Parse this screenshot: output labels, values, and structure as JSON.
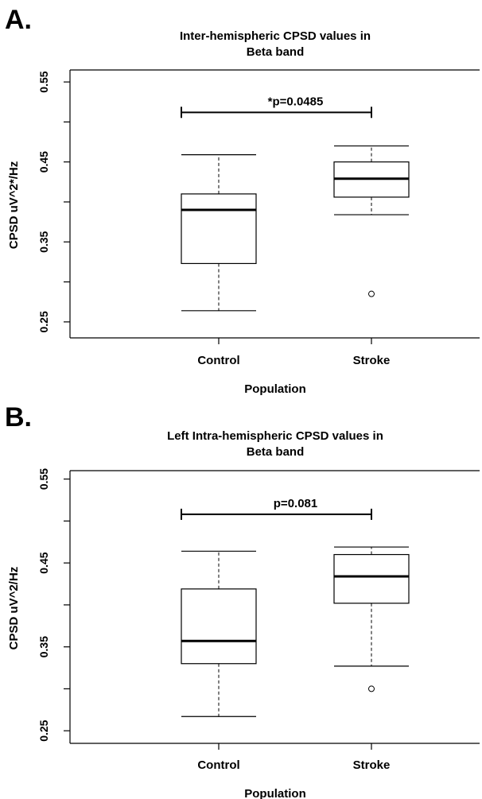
{
  "chart_data": [
    {
      "type": "box",
      "panel": "A.",
      "title_lines": [
        "Inter-hemispheric CPSD values in",
        "Beta band"
      ],
      "xlabel": "Population",
      "ylabel": "CPSD uV^2*/Hz",
      "ylim": [
        0.23,
        0.565
      ],
      "yticks": [
        0.25,
        0.3,
        0.35,
        0.4,
        0.45,
        0.5,
        0.55
      ],
      "ytick_labels": [
        "0.25",
        "",
        "0.35",
        "",
        "0.45",
        "",
        "0.55"
      ],
      "categories": [
        "Control",
        "Stroke"
      ],
      "boxes": [
        {
          "whisker_low": 0.264,
          "q1": 0.323,
          "median": 0.39,
          "q3": 0.41,
          "whisker_high": 0.459,
          "outliers": []
        },
        {
          "whisker_low": 0.384,
          "q1": 0.406,
          "median": 0.429,
          "q3": 0.45,
          "whisker_high": 0.47,
          "outliers": [
            0.285
          ]
        }
      ],
      "significance": {
        "label": "*p=0.0485",
        "y": 0.512
      }
    },
    {
      "type": "box",
      "panel": "B.",
      "title_lines": [
        "Left Intra-hemispheric CPSD values in",
        "Beta band"
      ],
      "xlabel": "Population",
      "ylabel": "CPSD uV^2/Hz",
      "ylim": [
        0.235,
        0.56
      ],
      "yticks": [
        0.25,
        0.3,
        0.35,
        0.4,
        0.45,
        0.5,
        0.55
      ],
      "ytick_labels": [
        "0.25",
        "",
        "0.35",
        "",
        "0.45",
        "",
        "0.55"
      ],
      "categories": [
        "Control",
        "Stroke"
      ],
      "boxes": [
        {
          "whisker_low": 0.267,
          "q1": 0.33,
          "median": 0.357,
          "q3": 0.419,
          "whisker_high": 0.464,
          "outliers": []
        },
        {
          "whisker_low": 0.327,
          "q1": 0.402,
          "median": 0.434,
          "q3": 0.46,
          "whisker_high": 0.469,
          "outliers": [
            0.3
          ]
        }
      ],
      "significance": {
        "label": "p=0.081",
        "y": 0.508
      }
    }
  ]
}
